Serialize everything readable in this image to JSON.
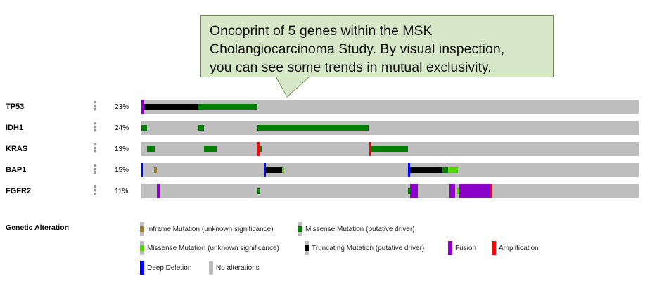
{
  "callout": {
    "text": "Oncoprint of 5 genes within the MSK\nCholangiocarcinoma Study.  By visual inspection,\nyou can see some trends in mutual exclusivity."
  },
  "track_menu_icon": "vertical-dots-icon",
  "tracks": [
    {
      "gene": "TP53",
      "percent": "23%",
      "alterations": [
        {
          "type": "fusion",
          "start": 0.0,
          "end": 0.005
        },
        {
          "type": "truncating",
          "start": 0.005,
          "end": 0.115
        },
        {
          "type": "missense_driver",
          "start": 0.115,
          "end": 0.234
        }
      ]
    },
    {
      "gene": "IDH1",
      "percent": "24%",
      "alterations": [
        {
          "type": "missense_driver",
          "start": 0.0,
          "end": 0.011
        },
        {
          "type": "missense_driver",
          "start": 0.115,
          "end": 0.126
        },
        {
          "type": "missense_driver",
          "start": 0.234,
          "end": 0.458
        }
      ]
    },
    {
      "gene": "KRAS",
      "percent": "13%",
      "alterations": [
        {
          "type": "missense_driver",
          "start": 0.011,
          "end": 0.027
        },
        {
          "type": "missense_driver",
          "start": 0.126,
          "end": 0.152
        },
        {
          "type": "missense_driver",
          "start": 0.234,
          "end": 0.243
        },
        {
          "type": "amplification",
          "start": 0.234,
          "end": 0.238
        },
        {
          "type": "amplification",
          "start": 0.458,
          "end": 0.462
        },
        {
          "type": "missense_driver",
          "start": 0.462,
          "end": 0.535
        }
      ]
    },
    {
      "gene": "BAP1",
      "percent": "15%",
      "alterations": [
        {
          "type": "deep_deletion",
          "start": 0.0,
          "end": 0.004
        },
        {
          "type": "inframe",
          "start": 0.026,
          "end": 0.031
        },
        {
          "type": "deep_deletion",
          "start": 0.246,
          "end": 0.25
        },
        {
          "type": "truncating",
          "start": 0.25,
          "end": 0.283
        },
        {
          "type": "missense_unknown",
          "start": 0.283,
          "end": 0.287
        },
        {
          "type": "deep_deletion",
          "start": 0.536,
          "end": 0.54
        },
        {
          "type": "truncating",
          "start": 0.54,
          "end": 0.605
        },
        {
          "type": "missense_driver",
          "start": 0.605,
          "end": 0.616
        },
        {
          "type": "missense_unknown",
          "start": 0.616,
          "end": 0.636
        }
      ]
    },
    {
      "gene": "FGFR2",
      "percent": "11%",
      "alterations": [
        {
          "type": "fusion",
          "start": 0.031,
          "end": 0.037
        },
        {
          "type": "missense_driver",
          "start": 0.234,
          "end": 0.239
        },
        {
          "type": "missense_driver",
          "start": 0.536,
          "end": 0.541
        },
        {
          "type": "fusion",
          "start": 0.541,
          "end": 0.557
        },
        {
          "type": "fusion",
          "start": 0.619,
          "end": 0.63
        },
        {
          "type": "missense_unknown",
          "start": 0.634,
          "end": 0.64
        },
        {
          "type": "fusion",
          "start": 0.64,
          "end": 0.702
        },
        {
          "type": "amplification",
          "start": 0.702,
          "end": 0.706
        }
      ]
    }
  ],
  "legend": {
    "title": "Genetic Alteration",
    "items": [
      {
        "key": "inframe",
        "label": "Inframe Mutation (unknown significance)"
      },
      {
        "key": "missense_driver",
        "label": "Missense Mutation (putative driver)"
      },
      {
        "key": "missense_unknown",
        "label": "Missense Mutation (unknown significance)"
      },
      {
        "key": "truncating",
        "label": "Truncating Mutation (putative driver)"
      },
      {
        "key": "fusion",
        "label": "Fusion"
      },
      {
        "key": "amplification",
        "label": "Amplification"
      },
      {
        "key": "deep_deletion",
        "label": "Deep Deletion"
      },
      {
        "key": "no_alteration",
        "label": "No alterations"
      }
    ]
  },
  "colors": {
    "inframe": "#9b7b2e",
    "missense_driver": "#008000",
    "missense_unknown": "#53d400",
    "truncating": "#000000",
    "fusion": "#8b00c9",
    "amplification": "#ff0000",
    "deep_deletion": "#0000ff",
    "no_alteration": "#bebebe"
  }
}
